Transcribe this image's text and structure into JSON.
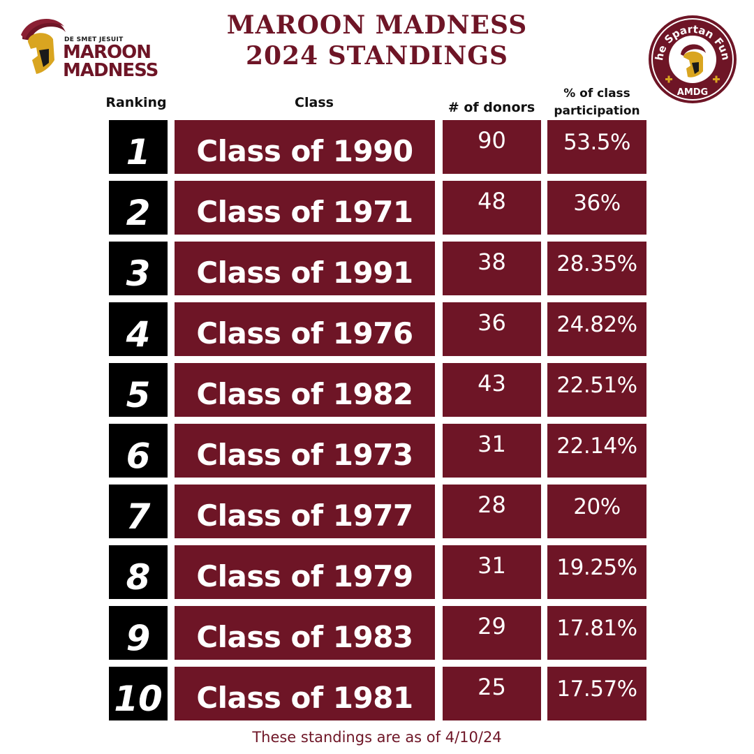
{
  "header": {
    "title_line1": "MAROON MADNESS",
    "title_line2": "2024 STANDINGS"
  },
  "logo_left": {
    "subtitle": "DE SMET JESUIT",
    "word1": "MAROON",
    "word2": "MADNESS",
    "icon": "spartan-helmet-icon"
  },
  "seal": {
    "arc_text": "The Spartan Fund",
    "bottom_text": "AMDG",
    "icon": "spartan-helmet-icon"
  },
  "columns": {
    "ranking": "Ranking",
    "class": "Class",
    "donors": "# of donors",
    "pct_line1": "% of class",
    "pct_line2": "participation"
  },
  "rows": [
    {
      "rank": "1",
      "class": "Class of 1990",
      "donors": "90",
      "pct": "53.5%"
    },
    {
      "rank": "2",
      "class": "Class of 1971",
      "donors": "48",
      "pct": "36%"
    },
    {
      "rank": "3",
      "class": "Class of 1991",
      "donors": "38",
      "pct": "28.35%"
    },
    {
      "rank": "4",
      "class": "Class of 1976",
      "donors": "36",
      "pct": "24.82%"
    },
    {
      "rank": "5",
      "class": "Class of 1982",
      "donors": "43",
      "pct": "22.51%"
    },
    {
      "rank": "6",
      "class": "Class of 1973",
      "donors": "31",
      "pct": "22.14%"
    },
    {
      "rank": "7",
      "class": "Class of 1977",
      "donors": "28",
      "pct": "20%"
    },
    {
      "rank": "8",
      "class": "Class of 1979",
      "donors": "31",
      "pct": "19.25%"
    },
    {
      "rank": "9",
      "class": "Class of 1983",
      "donors": "29",
      "pct": "17.81%"
    },
    {
      "rank": "10",
      "class": "Class of 1981",
      "donors": "25",
      "pct": "17.57%"
    }
  ],
  "footnote": "These standings are as of 4/10/24",
  "colors": {
    "maroon": "#6e1526",
    "gold": "#d9a520",
    "rank_box": "#000000"
  }
}
